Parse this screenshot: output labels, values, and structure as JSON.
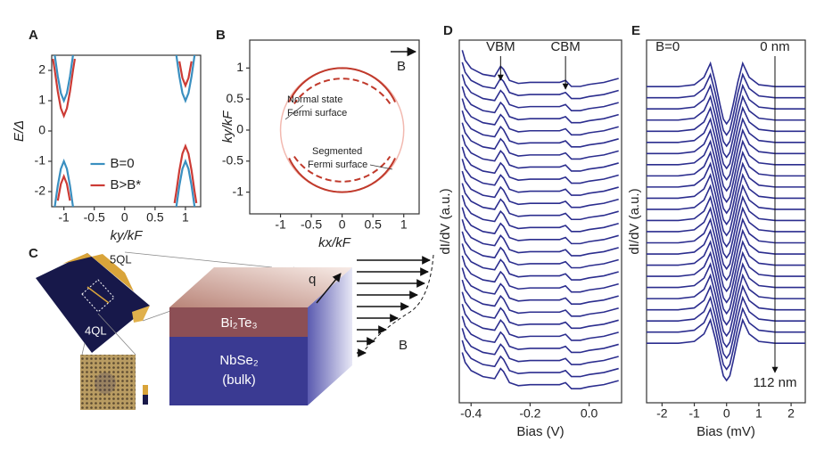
{
  "chart_data": [
    {
      "type": "line",
      "label": "A",
      "x_label": "ky/kF",
      "y_label": "E/Δ",
      "xlim": [
        -1.2,
        1.25
      ],
      "ylim": [
        -2.5,
        2.5
      ],
      "xticks": [
        -1,
        -0.5,
        0,
        0.5,
        1
      ],
      "yticks": [
        -2,
        -1,
        0,
        1,
        2
      ],
      "legend": "lower center",
      "series": [
        {
          "name": "B=0",
          "color": "#3a8fc0",
          "branches": [
            {
              "x": [
                -1.15,
                -1.1,
                -1.05,
                -1,
                -0.95,
                -0.9,
                -0.85
              ],
              "values": [
                2.5,
                1.8,
                1.25,
                1,
                1.25,
                1.8,
                2.5
              ]
            },
            {
              "x": [
                -1.15,
                -1.1,
                -1.05,
                -1,
                -0.95,
                -0.9,
                -0.85
              ],
              "values": [
                -2.5,
                -1.8,
                -1.25,
                -1,
                -1.25,
                -1.8,
                -2.5
              ]
            },
            {
              "x": [
                0.85,
                0.9,
                0.95,
                1,
                1.05,
                1.1,
                1.15
              ],
              "values": [
                2.5,
                1.8,
                1.25,
                1,
                1.25,
                1.8,
                2.5
              ]
            },
            {
              "x": [
                0.85,
                0.9,
                0.95,
                1,
                1.05,
                1.1,
                1.15
              ],
              "values": [
                -2.5,
                -1.8,
                -1.25,
                -1,
                -1.25,
                -1.8,
                -2.5
              ]
            }
          ]
        },
        {
          "name": "B>B*",
          "color": "#cc3b35",
          "branches": [
            {
              "x": [
                -1.18,
                -1.15,
                -1.1,
                -1.05,
                -1,
                -0.95,
                -0.9,
                -0.85,
                -0.82
              ],
              "values": [
                2.38,
                2.0,
                1.3,
                0.75,
                0.5,
                0.75,
                1.3,
                2.0,
                2.38
              ]
            },
            {
              "x": [
                -1.1,
                -1.05,
                -1,
                -0.95,
                -0.9
              ],
              "values": [
                -2.3,
                -1.75,
                -1.5,
                -1.75,
                -2.3
              ]
            },
            {
              "x": [
                0.9,
                0.95,
                1,
                1.05,
                1.1
              ],
              "values": [
                2.3,
                1.75,
                1.5,
                1.75,
                2.3
              ]
            },
            {
              "x": [
                0.82,
                0.85,
                0.9,
                0.95,
                1,
                1.05,
                1.1,
                1.15,
                1.18
              ],
              "values": [
                -2.38,
                -2.0,
                -1.3,
                -0.75,
                -0.5,
                -0.75,
                -1.3,
                -2.0,
                -2.38
              ]
            }
          ]
        }
      ]
    },
    {
      "type": "fermi-surface",
      "label": "B",
      "x_label": "kx/kF",
      "y_label": "ky/kF",
      "xlim": [
        -1.5,
        1.25
      ],
      "ylim": [
        -1.35,
        1.45
      ],
      "xticks": [
        -1,
        -0.5,
        0,
        0.5,
        1
      ],
      "yticks": [
        -1,
        -0.5,
        0,
        0.5,
        1
      ],
      "circle": {
        "r": 1,
        "color": "#f2b9b0"
      },
      "arcs": {
        "color": "#c0392b",
        "items": [
          {
            "cy": 0.05,
            "r": 0.95,
            "start": 25,
            "end": 155,
            "dashed": false
          },
          {
            "cy": -0.12,
            "r": 0.95,
            "start": 35,
            "end": 145,
            "dashed": true
          },
          {
            "cy": -0.05,
            "r": 0.95,
            "start": 205,
            "end": 335,
            "dashed": false
          },
          {
            "cy": 0.12,
            "r": 0.95,
            "start": 215,
            "end": 325,
            "dashed": true
          }
        ]
      },
      "annotations": [
        "Normal state",
        "Fermi surface",
        "Segmented",
        "Fermi surface"
      ],
      "field_label": "B"
    },
    {
      "type": "waterfall",
      "label": "D",
      "x_label": "Bias (V)",
      "y_label": "dI/dV (a.u.)",
      "xlim": [
        -0.44,
        0.11
      ],
      "ylim": [
        -3.2,
        0.4
      ],
      "xticks": [
        -0.4,
        -0.2,
        {
          "value": 0,
          "label": "0.0"
        }
      ],
      "color": "#2b2d8e",
      "x": [
        -0.43,
        -0.42,
        -0.4,
        -0.36,
        -0.32,
        -0.3,
        -0.29,
        -0.27,
        -0.24,
        -0.2,
        -0.15,
        -0.1,
        -0.08,
        -0.06,
        -0.03,
        0,
        0.05,
        0.1
      ],
      "profile": [
        0.3,
        0.2,
        0.12,
        0.06,
        0.04,
        0.14,
        0.11,
        0.0,
        -0.03,
        -0.02,
        -0.02,
        -0.02,
        0,
        -0.06,
        -0.06,
        -0.04,
        -0.02,
        0.02
      ],
      "offsets": [
        0,
        -0.12,
        -0.24,
        -0.36,
        -0.48,
        -0.6,
        -0.72,
        -0.84,
        -0.96,
        -1.08,
        -1.2,
        -1.32,
        -1.44,
        -1.56,
        -1.68,
        -1.8,
        -1.92,
        -2.04,
        -2.16,
        -2.28,
        -2.4,
        -2.52,
        -2.64,
        -2.76,
        -2.88,
        -3.0
      ],
      "annotations": [
        {
          "text": "VBM",
          "x": -0.3
        },
        {
          "text": "CBM",
          "x": -0.08
        }
      ]
    },
    {
      "type": "waterfall",
      "label": "E",
      "x_label": "Bias (mV)",
      "y_label": "dI/dV (a.u.)",
      "xlim": [
        -2.48,
        2.44
      ],
      "ylim": [
        -3.4,
        0.5
      ],
      "xticks": [
        -2,
        -1,
        0,
        1,
        2
      ],
      "color": "#2b2d8e",
      "x": [
        -2.48,
        -2,
        -1.5,
        -1,
        -0.7,
        -0.5,
        -0.35,
        -0.2,
        -0.1,
        0,
        0.1,
        0.2,
        0.35,
        0.5,
        0.7,
        1,
        1.5,
        2,
        2.44
      ],
      "profile": [
        0,
        0,
        0,
        0.02,
        0.1,
        0.25,
        0.05,
        -0.2,
        -0.35,
        -0.4,
        -0.35,
        -0.2,
        0.05,
        0.25,
        0.1,
        0.02,
        0,
        0,
        0
      ],
      "offsets": [
        0,
        -0.12,
        -0.24,
        -0.36,
        -0.48,
        -0.6,
        -0.72,
        -0.84,
        -0.96,
        -1.08,
        -1.2,
        -1.32,
        -1.44,
        -1.56,
        -1.68,
        -1.8,
        -1.92,
        -2.04,
        -2.16,
        -2.28,
        -2.4,
        -2.52,
        -2.64,
        -2.76
      ],
      "annotations": [
        {
          "text": "B=0",
          "x": -2.2
        },
        {
          "text": "0 nm",
          "x": 1.5
        },
        {
          "text": "112 nm",
          "x": 1.5
        }
      ]
    }
  ],
  "diagram": {
    "label": "C",
    "stm_top": "5QL",
    "stm_bottom": "4QL",
    "layer_top": "Bi₂Te₃",
    "layer_bottom": [
      "NbSe₂",
      "(bulk)"
    ],
    "wavevector": "q",
    "field": "B"
  }
}
